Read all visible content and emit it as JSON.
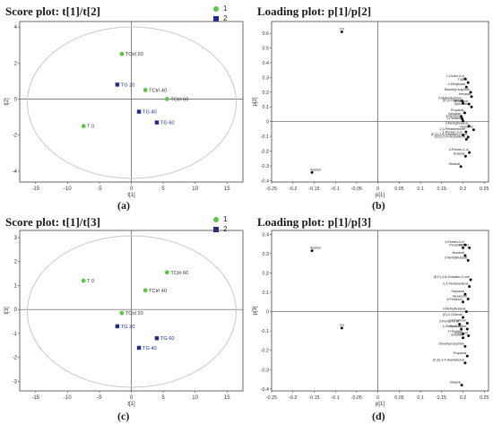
{
  "panels": [
    {
      "id": "a",
      "title": "Score plot: t[1]/t[2]",
      "caption": "(a)",
      "legend": [
        {
          "label": "1",
          "color": "#5ec44a",
          "shape": "circle"
        },
        {
          "label": "2",
          "color": "#1f2a8f",
          "shape": "square"
        }
      ],
      "chart_data": {
        "type": "scatter",
        "xlabel": "t[1]",
        "ylabel": "t[2]",
        "xlim": [
          -17.5,
          17.5
        ],
        "ylim": [
          -4.6,
          4.3
        ],
        "xticks": [
          -15,
          -10,
          -5,
          0,
          5,
          10,
          15
        ],
        "yticks": [
          -4,
          -2,
          0,
          2,
          4
        ],
        "ellipse": true,
        "points": [
          {
            "label": "TCtrl 20",
            "x": -1.5,
            "y": 2.5,
            "group": 1
          },
          {
            "label": "TCtrl 40",
            "x": 2.2,
            "y": 0.5,
            "group": 1
          },
          {
            "label": "TCtrl 60",
            "x": 5.6,
            "y": 0.0,
            "group": 1
          },
          {
            "label": "T  0",
            "x": -7.5,
            "y": -1.5,
            "group": 1
          },
          {
            "label": "TG  20",
            "x": -2.2,
            "y": 0.8,
            "group": 2
          },
          {
            "label": "TG  40",
            "x": 1.2,
            "y": -0.7,
            "group": 2
          },
          {
            "label": "TG  60",
            "x": 4.0,
            "y": -1.3,
            "group": 2
          }
        ]
      }
    },
    {
      "id": "b",
      "title": "Loading plot: p[1]/p[2]",
      "caption": "(b)",
      "chart_data": {
        "type": "scatter",
        "xlabel": "p[1]",
        "ylabel": "p[2]",
        "xlim": [
          -0.25,
          0.26
        ],
        "ylim": [
          -0.41,
          0.68
        ],
        "xticks": [
          -0.25,
          -0.2,
          -0.15,
          -0.1,
          -0.05,
          0,
          0.05,
          0.1,
          0.15,
          0.2,
          0.25
        ],
        "yticks": [
          -0.4,
          -0.3,
          -0.2,
          -0.1,
          0,
          0.1,
          0.2,
          0.3,
          0.4,
          0.5,
          0.6
        ],
        "points": [
          {
            "label": "PV",
            "x": -0.085,
            "y": 0.61
          },
          {
            "label": "Acetoin",
            "x": -0.155,
            "y": -0.345
          },
          {
            "label": "1-Octen-3-ol",
            "x": 0.205,
            "y": 0.29
          },
          {
            "label": "TVB-N",
            "x": 0.212,
            "y": 0.265
          },
          {
            "label": "2-Ethylfuran",
            "x": 0.208,
            "y": 0.235
          },
          {
            "label": "Dimethyl sulphide",
            "x": 0.218,
            "y": 0.2
          },
          {
            "label": "Hexanal",
            "x": 0.22,
            "y": 0.17
          },
          {
            "label": "2-Methylbutanal",
            "x": 0.198,
            "y": 0.14
          },
          {
            "label": "(E)-2-Octenal",
            "x": 0.2,
            "y": 0.125
          },
          {
            "label": "Hexanone",
            "x": 0.214,
            "y": 0.12
          },
          {
            "label": "Spermidine",
            "x": 0.22,
            "y": 0.1
          },
          {
            "label": "Propanal",
            "x": 0.204,
            "y": 0.06
          },
          {
            "label": "Nonanal",
            "x": 0.196,
            "y": 0.035
          },
          {
            "label": "3-Pentanol",
            "x": 0.198,
            "y": 0.02
          },
          {
            "label": "1-Pentanol",
            "x": 0.2,
            "y": 0.005
          },
          {
            "label": "3-Methylbutanal",
            "x": 0.214,
            "y": -0.03
          },
          {
            "label": "Heptanal",
            "x": 0.225,
            "y": -0.055
          },
          {
            "label": "2,3-Pentanedione",
            "x": 0.207,
            "y": -0.07
          },
          {
            "label": "1-Penten-3-ol",
            "x": 0.2,
            "y": -0.09
          },
          {
            "label": "(E,E)-3,5-Octadien-2-one",
            "x": 0.212,
            "y": -0.105
          },
          {
            "label": "(E,E)-2,4-Heptadienal",
            "x": 0.208,
            "y": -0.12
          },
          {
            "label": "2-Penten-1-ol",
            "x": 0.215,
            "y": -0.21
          },
          {
            "label": "Butanal",
            "x": 0.206,
            "y": -0.235
          },
          {
            "label": "Octanal",
            "x": 0.195,
            "y": -0.305
          }
        ]
      }
    },
    {
      "id": "c",
      "title": "Score plot: t[1]/t[3]",
      "caption": "(c)",
      "legend": [
        {
          "label": "1",
          "color": "#5ec44a",
          "shape": "circle"
        },
        {
          "label": "2",
          "color": "#1f2a8f",
          "shape": "square"
        }
      ],
      "chart_data": {
        "type": "scatter",
        "xlabel": "t[1]",
        "ylabel": "t[3]",
        "xlim": [
          -17.5,
          17.5
        ],
        "ylim": [
          -3.4,
          3.3
        ],
        "xticks": [
          -15,
          -10,
          -5,
          0,
          5,
          10,
          15
        ],
        "yticks": [
          -3,
          -2,
          -1,
          0,
          1,
          2,
          3
        ],
        "ellipse": true,
        "points": [
          {
            "label": "TCtrl 60",
            "x": 5.6,
            "y": 1.55,
            "group": 1
          },
          {
            "label": "TCtrl 40",
            "x": 2.2,
            "y": 0.8,
            "group": 1
          },
          {
            "label": "T  0",
            "x": -7.5,
            "y": 1.2,
            "group": 1
          },
          {
            "label": "TCtrl 20",
            "x": -1.5,
            "y": -0.15,
            "group": 1
          },
          {
            "label": "TG  20",
            "x": -2.2,
            "y": -0.7,
            "group": 2
          },
          {
            "label": "TG  60",
            "x": 4.0,
            "y": -1.2,
            "group": 2
          },
          {
            "label": "TG  40",
            "x": 1.2,
            "y": -1.6,
            "group": 2
          }
        ]
      }
    },
    {
      "id": "d",
      "title": "Loading plot: p[1]/p[3]",
      "caption": "(d)",
      "chart_data": {
        "type": "scatter",
        "xlabel": "p[1]",
        "ylabel": "p[3]",
        "xlim": [
          -0.25,
          0.26
        ],
        "ylim": [
          -0.41,
          0.42
        ],
        "xticks": [
          -0.25,
          -0.2,
          -0.15,
          -0.1,
          -0.05,
          0,
          0.05,
          0.1,
          0.15,
          0.2,
          0.25
        ],
        "yticks": [
          -0.4,
          -0.3,
          -0.2,
          -0.1,
          0,
          0.1,
          0.2,
          0.3,
          0.4
        ],
        "points": [
          {
            "label": "Acetoin",
            "x": -0.155,
            "y": 0.315
          },
          {
            "label": "PV",
            "x": -0.085,
            "y": -0.085
          },
          {
            "label": "1-Penten-3-ol",
            "x": 0.205,
            "y": 0.345
          },
          {
            "label": "Pentanal",
            "x": 0.2,
            "y": 0.33
          },
          {
            "label": "TVB-N",
            "x": 0.215,
            "y": 0.33
          },
          {
            "label": "Nonanal",
            "x": 0.205,
            "y": 0.29
          },
          {
            "label": "2-Methylbutanal",
            "x": 0.212,
            "y": 0.265
          },
          {
            "label": "(E,E)-3,5-Octadien-2-one",
            "x": 0.218,
            "y": 0.165
          },
          {
            "label": "2,3-Pentanedione",
            "x": 0.215,
            "y": 0.13
          },
          {
            "label": "Heptanal",
            "x": 0.205,
            "y": 0.09
          },
          {
            "label": "Hexanone",
            "x": 0.212,
            "y": 0.065
          },
          {
            "label": "3-Pentanol",
            "x": 0.2,
            "y": 0.05
          },
          {
            "label": "3-Methylbutanal",
            "x": 0.208,
            "y": 0.0
          },
          {
            "label": "(E)-2-Octenal",
            "x": 0.2,
            "y": -0.03
          },
          {
            "label": "2-Ethylfuran",
            "x": 0.21,
            "y": -0.06
          },
          {
            "label": "2-Penten-1-ol",
            "x": 0.192,
            "y": -0.065
          },
          {
            "label": "1-Octen-3-ol",
            "x": 0.196,
            "y": -0.09
          },
          {
            "label": "Spermidine",
            "x": 0.21,
            "y": -0.09
          },
          {
            "label": "1-Hexanal",
            "x": 0.2,
            "y": -0.115
          },
          {
            "label": "Propanal",
            "x": 0.213,
            "y": -0.125
          },
          {
            "label": "Butanal",
            "x": 0.2,
            "y": -0.135
          },
          {
            "label": "Dimethyl sulphide",
            "x": 0.205,
            "y": -0.18
          },
          {
            "label": "Propanal",
            "x": 0.21,
            "y": -0.23
          },
          {
            "label": "(E,E)-2,4-Heptadienal",
            "x": 0.205,
            "y": -0.265
          },
          {
            "label": "Octanal",
            "x": 0.197,
            "y": -0.38
          }
        ]
      }
    }
  ]
}
